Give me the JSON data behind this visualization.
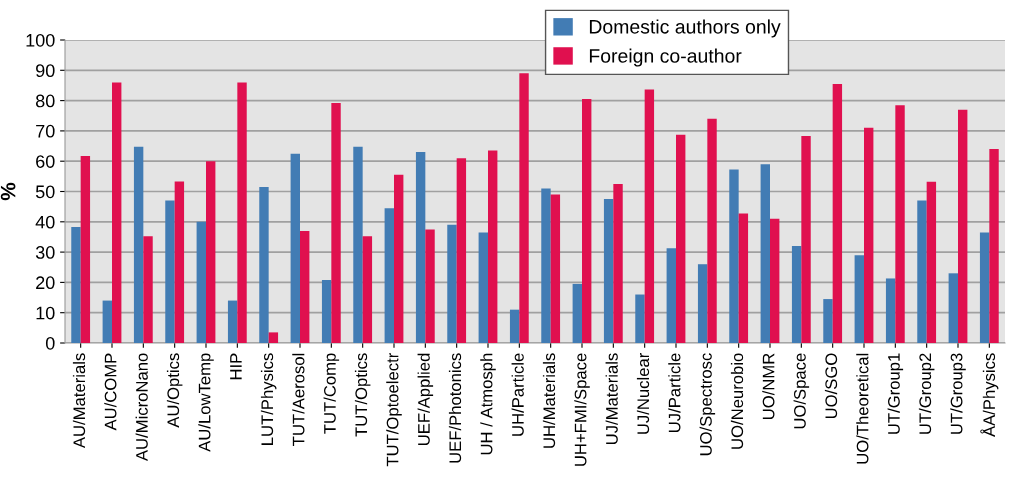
{
  "chart_data": {
    "type": "bar",
    "ylabel": "%",
    "categories": [
      "AU/Materials",
      "AU/COMP",
      "AU/MicroNano",
      "AU/Optics",
      "AU/LowTemp",
      "HIP",
      "LUT/Physics",
      "TUT/Aerosol",
      "TUT/Comp",
      "TUT/Optics",
      "TUT/Optoelectr",
      "UEF/Applied",
      "UEF/Photonics",
      "UH / Atmosph",
      "UH/Particle",
      "UH/Materials",
      "UH+FMI/Space",
      "UJ/Materials",
      "UJ/Nuclear",
      "UJ/Particle",
      "UO/Spectrosc",
      "UO/Neurobio",
      "UO/NMR",
      "UO/Space",
      "UO/SGO",
      "UO/Theoretical",
      "UT/Group1",
      "UT/Group2",
      "UT/Group3",
      "ÅA/Physics"
    ],
    "series": [
      {
        "name": "Domestic authors only",
        "color": "#427cb4",
        "values": [
          38.3,
          14,
          64.8,
          47,
          40,
          14,
          51.5,
          62.5,
          20.8,
          64.8,
          44.5,
          63,
          39,
          36.5,
          11,
          51,
          19.5,
          47.5,
          16,
          31.3,
          26,
          57.3,
          59,
          32,
          14.5,
          29,
          21.3,
          47,
          23,
          36.5
        ]
      },
      {
        "name": "Foreign co-author",
        "color": "#e0104f",
        "values": [
          61.7,
          86,
          35.2,
          53.3,
          60,
          86,
          3.5,
          37,
          79.2,
          35.2,
          55.5,
          37.5,
          61,
          63.5,
          89,
          49,
          80.5,
          52.5,
          83.7,
          68.7,
          74,
          42.7,
          41,
          68.3,
          85.5,
          71,
          78.5,
          53.2,
          77,
          64
        ]
      }
    ],
    "ylim": [
      0,
      100
    ],
    "yticks": [
      0,
      10,
      20,
      30,
      40,
      50,
      60,
      70,
      80,
      90,
      100
    ],
    "grid": "y",
    "legend": "top right"
  }
}
